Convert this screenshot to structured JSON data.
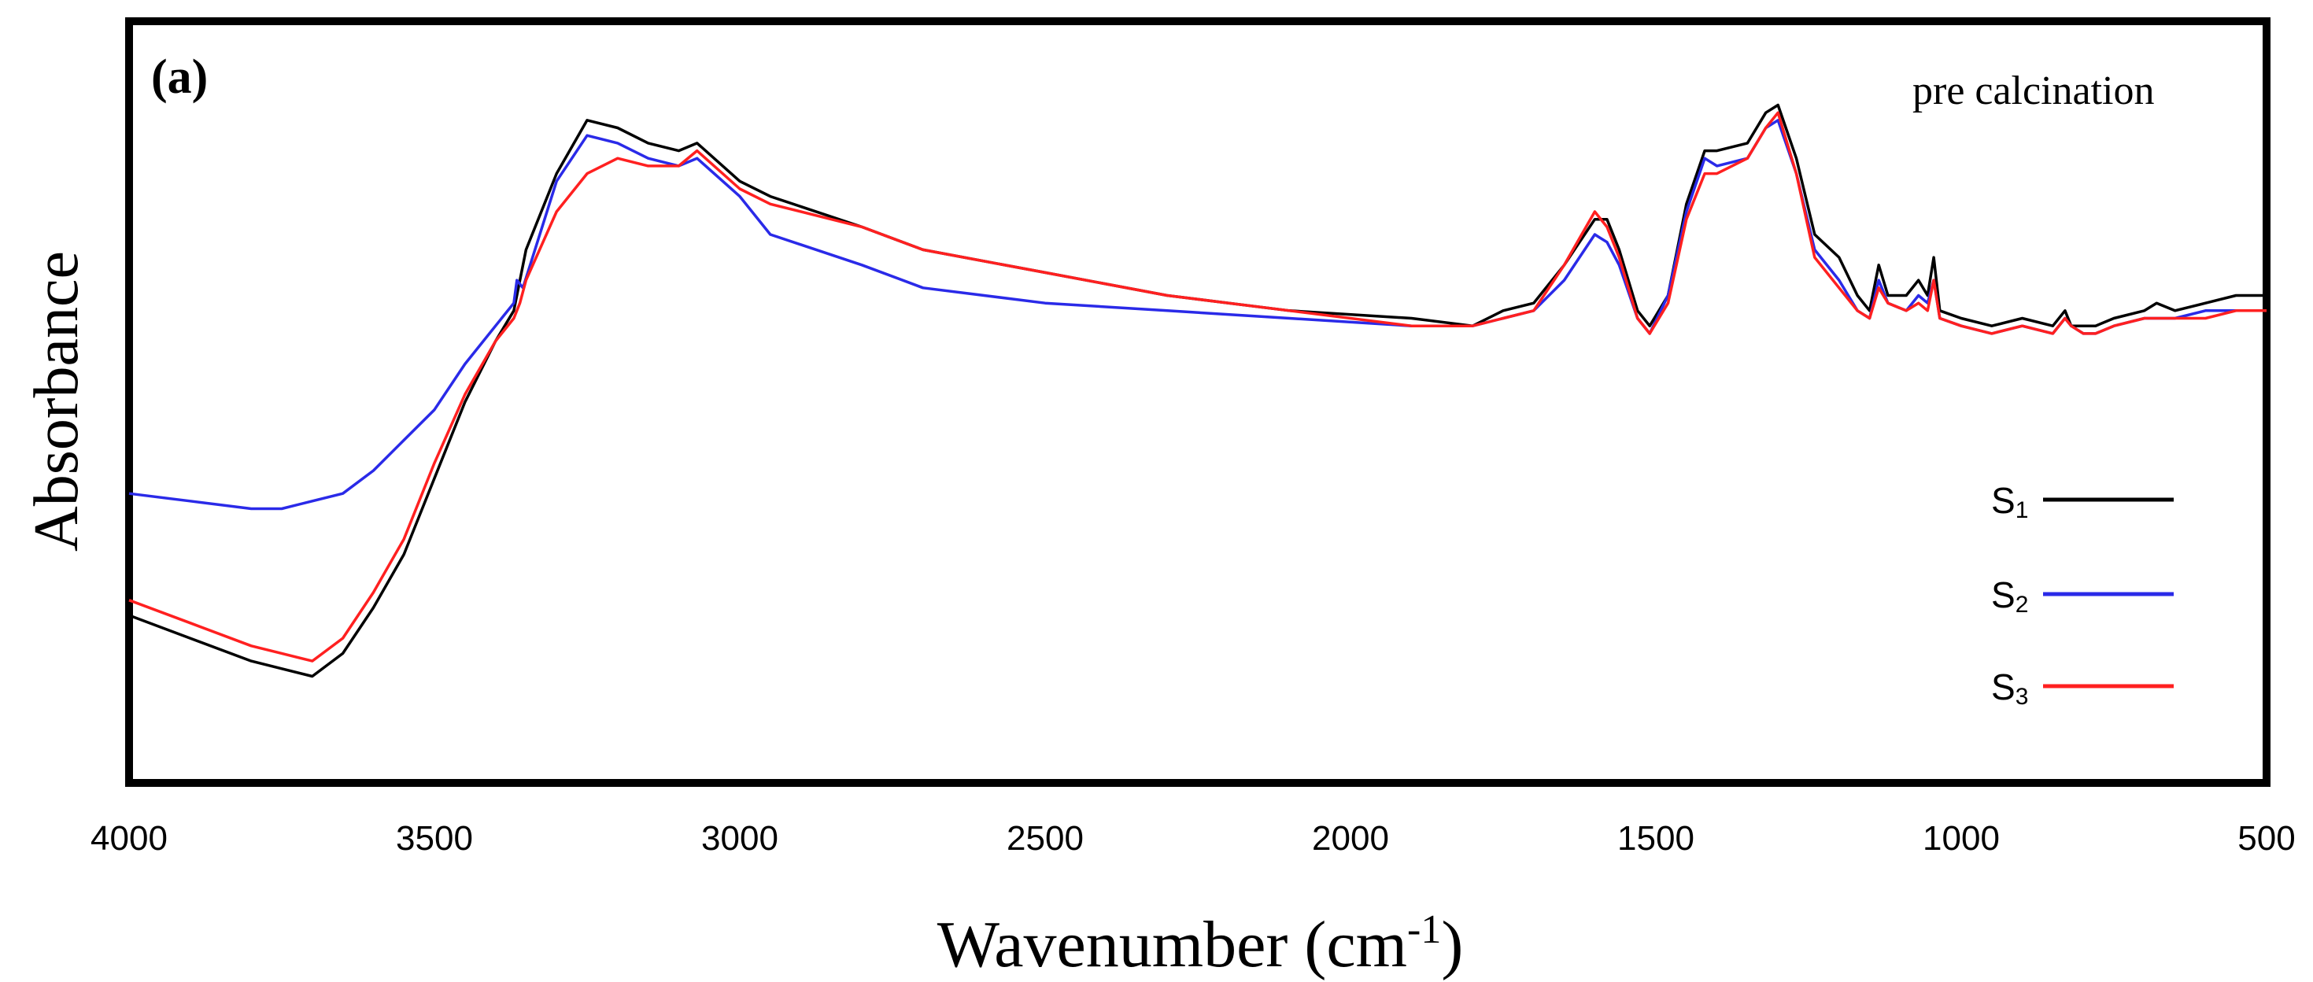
{
  "chart_data": {
    "type": "line",
    "panel_label": "(a)",
    "annotation": "pre calcination",
    "xlabel_main": "Wavenumber (cm",
    "xlabel_sup": "-1",
    "xlabel_close": ")",
    "ylabel": "Absorbance",
    "xlim": [
      4000,
      500
    ],
    "ylim": [
      0,
      1
    ],
    "x_reversed": true,
    "yticks_shown": false,
    "grid": false,
    "legend_position": "right-middle",
    "xticks": [
      {
        "value": 4000,
        "label": "4000"
      },
      {
        "value": 3500,
        "label": "3500"
      },
      {
        "value": 3000,
        "label": "3000"
      },
      {
        "value": 2500,
        "label": "2500"
      },
      {
        "value": 2000,
        "label": "2000"
      },
      {
        "value": 1500,
        "label": "1500"
      },
      {
        "value": 1000,
        "label": "1000"
      },
      {
        "value": 500,
        "label": "500"
      }
    ],
    "series": [
      {
        "name": "S1",
        "legend_base": "S",
        "legend_sub": "1",
        "color": "#000000",
        "points": [
          [
            4000,
            0.22
          ],
          [
            3900,
            0.19
          ],
          [
            3800,
            0.16
          ],
          [
            3750,
            0.15
          ],
          [
            3700,
            0.14
          ],
          [
            3650,
            0.17
          ],
          [
            3600,
            0.23
          ],
          [
            3550,
            0.3
          ],
          [
            3500,
            0.4
          ],
          [
            3450,
            0.5
          ],
          [
            3400,
            0.58
          ],
          [
            3370,
            0.62
          ],
          [
            3350,
            0.7
          ],
          [
            3300,
            0.8
          ],
          [
            3250,
            0.87
          ],
          [
            3200,
            0.86
          ],
          [
            3150,
            0.84
          ],
          [
            3100,
            0.83
          ],
          [
            3070,
            0.84
          ],
          [
            3000,
            0.79
          ],
          [
            2950,
            0.77
          ],
          [
            2800,
            0.73
          ],
          [
            2700,
            0.7
          ],
          [
            2500,
            0.67
          ],
          [
            2300,
            0.64
          ],
          [
            2100,
            0.62
          ],
          [
            1900,
            0.61
          ],
          [
            1800,
            0.6
          ],
          [
            1750,
            0.62
          ],
          [
            1700,
            0.63
          ],
          [
            1650,
            0.68
          ],
          [
            1600,
            0.74
          ],
          [
            1580,
            0.74
          ],
          [
            1560,
            0.7
          ],
          [
            1530,
            0.62
          ],
          [
            1510,
            0.6
          ],
          [
            1480,
            0.64
          ],
          [
            1450,
            0.76
          ],
          [
            1420,
            0.83
          ],
          [
            1400,
            0.83
          ],
          [
            1350,
            0.84
          ],
          [
            1320,
            0.88
          ],
          [
            1300,
            0.89
          ],
          [
            1270,
            0.82
          ],
          [
            1240,
            0.72
          ],
          [
            1200,
            0.69
          ],
          [
            1170,
            0.64
          ],
          [
            1150,
            0.62
          ],
          [
            1135,
            0.68
          ],
          [
            1120,
            0.64
          ],
          [
            1090,
            0.64
          ],
          [
            1070,
            0.66
          ],
          [
            1055,
            0.64
          ],
          [
            1045,
            0.69
          ],
          [
            1035,
            0.62
          ],
          [
            1000,
            0.61
          ],
          [
            950,
            0.6
          ],
          [
            900,
            0.61
          ],
          [
            850,
            0.6
          ],
          [
            830,
            0.62
          ],
          [
            820,
            0.6
          ],
          [
            800,
            0.6
          ],
          [
            780,
            0.6
          ],
          [
            750,
            0.61
          ],
          [
            700,
            0.62
          ],
          [
            680,
            0.63
          ],
          [
            650,
            0.62
          ],
          [
            600,
            0.63
          ],
          [
            550,
            0.64
          ],
          [
            500,
            0.64
          ]
        ]
      },
      {
        "name": "S2",
        "legend_base": "S",
        "legend_sub": "2",
        "color": "#2a2ae8",
        "points": [
          [
            4000,
            0.38
          ],
          [
            3900,
            0.37
          ],
          [
            3800,
            0.36
          ],
          [
            3750,
            0.36
          ],
          [
            3700,
            0.37
          ],
          [
            3650,
            0.38
          ],
          [
            3600,
            0.41
          ],
          [
            3550,
            0.45
          ],
          [
            3500,
            0.49
          ],
          [
            3450,
            0.55
          ],
          [
            3400,
            0.6
          ],
          [
            3370,
            0.63
          ],
          [
            3365,
            0.66
          ],
          [
            3355,
            0.65
          ],
          [
            3300,
            0.79
          ],
          [
            3250,
            0.85
          ],
          [
            3200,
            0.84
          ],
          [
            3150,
            0.82
          ],
          [
            3100,
            0.81
          ],
          [
            3070,
            0.82
          ],
          [
            3000,
            0.77
          ],
          [
            2950,
            0.72
          ],
          [
            2800,
            0.68
          ],
          [
            2700,
            0.65
          ],
          [
            2500,
            0.63
          ],
          [
            2300,
            0.62
          ],
          [
            2100,
            0.61
          ],
          [
            1900,
            0.6
          ],
          [
            1800,
            0.6
          ],
          [
            1750,
            0.61
          ],
          [
            1700,
            0.62
          ],
          [
            1650,
            0.66
          ],
          [
            1600,
            0.72
          ],
          [
            1580,
            0.71
          ],
          [
            1560,
            0.68
          ],
          [
            1530,
            0.61
          ],
          [
            1510,
            0.59
          ],
          [
            1480,
            0.64
          ],
          [
            1450,
            0.75
          ],
          [
            1420,
            0.82
          ],
          [
            1400,
            0.81
          ],
          [
            1350,
            0.82
          ],
          [
            1320,
            0.86
          ],
          [
            1300,
            0.87
          ],
          [
            1270,
            0.8
          ],
          [
            1240,
            0.7
          ],
          [
            1200,
            0.66
          ],
          [
            1170,
            0.62
          ],
          [
            1150,
            0.61
          ],
          [
            1135,
            0.66
          ],
          [
            1120,
            0.63
          ],
          [
            1090,
            0.62
          ],
          [
            1070,
            0.64
          ],
          [
            1055,
            0.63
          ],
          [
            1045,
            0.66
          ],
          [
            1035,
            0.61
          ],
          [
            1000,
            0.6
          ],
          [
            950,
            0.59
          ],
          [
            900,
            0.6
          ],
          [
            850,
            0.59
          ],
          [
            830,
            0.61
          ],
          [
            820,
            0.6
          ],
          [
            800,
            0.59
          ],
          [
            780,
            0.59
          ],
          [
            750,
            0.6
          ],
          [
            700,
            0.61
          ],
          [
            680,
            0.61
          ],
          [
            650,
            0.61
          ],
          [
            600,
            0.62
          ],
          [
            550,
            0.62
          ],
          [
            500,
            0.62
          ]
        ]
      },
      {
        "name": "S3",
        "legend_base": "S",
        "legend_sub": "3",
        "color": "#ff2020",
        "points": [
          [
            4000,
            0.24
          ],
          [
            3900,
            0.21
          ],
          [
            3800,
            0.18
          ],
          [
            3750,
            0.17
          ],
          [
            3700,
            0.16
          ],
          [
            3650,
            0.19
          ],
          [
            3600,
            0.25
          ],
          [
            3550,
            0.32
          ],
          [
            3500,
            0.42
          ],
          [
            3450,
            0.51
          ],
          [
            3400,
            0.58
          ],
          [
            3370,
            0.61
          ],
          [
            3360,
            0.63
          ],
          [
            3350,
            0.66
          ],
          [
            3300,
            0.75
          ],
          [
            3250,
            0.8
          ],
          [
            3200,
            0.82
          ],
          [
            3150,
            0.81
          ],
          [
            3100,
            0.81
          ],
          [
            3070,
            0.83
          ],
          [
            3000,
            0.78
          ],
          [
            2950,
            0.76
          ],
          [
            2800,
            0.73
          ],
          [
            2700,
            0.7
          ],
          [
            2500,
            0.67
          ],
          [
            2300,
            0.64
          ],
          [
            2100,
            0.62
          ],
          [
            1900,
            0.6
          ],
          [
            1800,
            0.6
          ],
          [
            1750,
            0.61
          ],
          [
            1700,
            0.62
          ],
          [
            1650,
            0.68
          ],
          [
            1600,
            0.75
          ],
          [
            1580,
            0.73
          ],
          [
            1560,
            0.69
          ],
          [
            1530,
            0.61
          ],
          [
            1510,
            0.59
          ],
          [
            1480,
            0.63
          ],
          [
            1450,
            0.74
          ],
          [
            1420,
            0.8
          ],
          [
            1400,
            0.8
          ],
          [
            1350,
            0.82
          ],
          [
            1320,
            0.86
          ],
          [
            1300,
            0.88
          ],
          [
            1270,
            0.8
          ],
          [
            1240,
            0.69
          ],
          [
            1200,
            0.65
          ],
          [
            1170,
            0.62
          ],
          [
            1150,
            0.61
          ],
          [
            1135,
            0.65
          ],
          [
            1120,
            0.63
          ],
          [
            1090,
            0.62
          ],
          [
            1070,
            0.63
          ],
          [
            1055,
            0.62
          ],
          [
            1045,
            0.66
          ],
          [
            1035,
            0.61
          ],
          [
            1000,
            0.6
          ],
          [
            950,
            0.59
          ],
          [
            900,
            0.6
          ],
          [
            850,
            0.59
          ],
          [
            830,
            0.61
          ],
          [
            820,
            0.6
          ],
          [
            800,
            0.59
          ],
          [
            780,
            0.59
          ],
          [
            750,
            0.6
          ],
          [
            700,
            0.61
          ],
          [
            680,
            0.61
          ],
          [
            650,
            0.61
          ],
          [
            600,
            0.61
          ],
          [
            550,
            0.62
          ],
          [
            500,
            0.62
          ]
        ]
      }
    ]
  }
}
